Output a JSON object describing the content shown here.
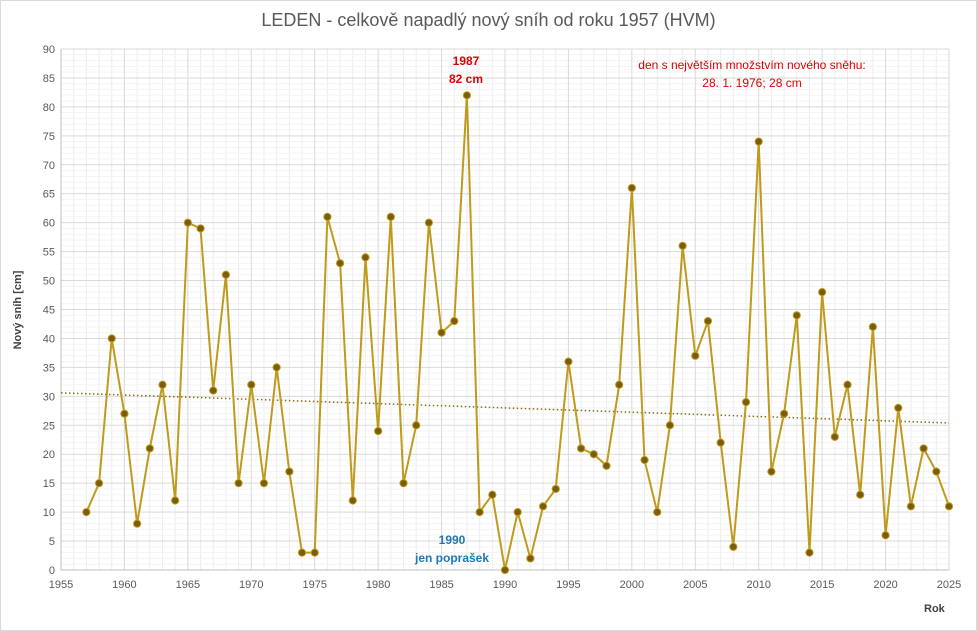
{
  "chart_data": {
    "type": "line",
    "title": "LEDEN - celkově napadlý nový sníh od roku 1957 (HVM)",
    "xlabel": "Rok",
    "ylabel": "Nový sníh [cm]",
    "xlim": [
      1955,
      2025
    ],
    "ylim": [
      0,
      90
    ],
    "x_ticks": [
      1955,
      1960,
      1965,
      1970,
      1975,
      1980,
      1985,
      1990,
      1995,
      2000,
      2005,
      2010,
      2015,
      2020,
      2025
    ],
    "y_ticks": [
      0,
      5,
      10,
      15,
      20,
      25,
      30,
      35,
      40,
      45,
      50,
      55,
      60,
      65,
      70,
      75,
      80,
      85,
      90
    ],
    "grid": true,
    "series": [
      {
        "x": [
          1957,
          1958,
          1959,
          1960,
          1961,
          1962,
          1963,
          1964,
          1965,
          1966,
          1967,
          1968,
          1969,
          1970,
          1971,
          1972,
          1973,
          1974,
          1975,
          1976,
          1977,
          1978,
          1979,
          1980,
          1981,
          1982,
          1983,
          1984,
          1985,
          1986,
          1987,
          1988,
          1989,
          1990,
          1991,
          1992,
          1993,
          1994,
          1995,
          1996,
          1997,
          1998,
          1999,
          2000,
          2001,
          2002,
          2003,
          2004,
          2005,
          2006,
          2007,
          2008,
          2009,
          2010,
          2011,
          2012,
          2013,
          2014,
          2015,
          2016,
          2017,
          2018,
          2019,
          2020,
          2021,
          2022,
          2023,
          2024,
          2025
        ],
        "values": [
          10,
          15,
          40,
          27,
          8,
          21,
          32,
          12,
          60,
          59,
          31,
          51,
          15,
          32,
          15,
          35,
          17,
          3,
          3,
          61,
          53,
          12,
          54,
          24,
          61,
          15,
          25,
          60,
          41,
          43,
          82,
          10,
          13,
          0,
          10,
          2,
          11,
          14,
          36,
          21,
          20,
          18,
          32,
          66,
          19,
          10,
          25,
          56,
          37,
          43,
          22,
          4,
          29,
          74,
          17,
          27,
          44,
          3,
          48,
          23,
          32,
          13,
          42,
          6,
          28,
          11,
          21,
          17,
          11
        ],
        "color": "#c09a1a",
        "marker_color": "#7a5c10"
      }
    ],
    "trendline": {
      "type": "linear",
      "x": [
        1955,
        2025
      ],
      "values": [
        30.6,
        25.4
      ],
      "color": "#8a6a16",
      "style": "dotted"
    },
    "annotations": {
      "max_year": "1987",
      "max_value": "82 cm",
      "max_day_line1": "den s největším množstvím nového sněhu:",
      "max_day_line2": "28. 1. 1976;  28 cm",
      "min_year": "1990",
      "min_note": "jen poprašek"
    }
  }
}
